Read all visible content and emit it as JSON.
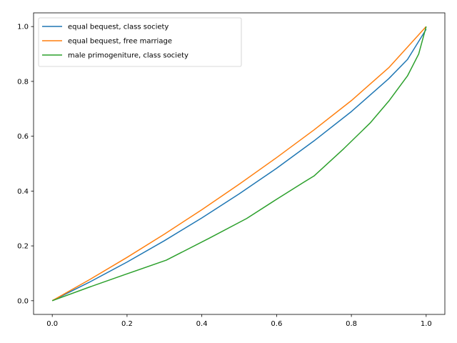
{
  "chart_data": {
    "type": "line",
    "title": "",
    "xlabel": "",
    "ylabel": "",
    "xlim": [
      -0.05,
      1.05
    ],
    "ylim": [
      -0.05,
      1.05
    ],
    "xticks": [
      "0.0",
      "0.2",
      "0.4",
      "0.6",
      "0.8",
      "1.0"
    ],
    "yticks": [
      "0.0",
      "0.2",
      "0.4",
      "0.6",
      "0.8",
      "1.0"
    ],
    "grid": false,
    "legend_position": "top-left",
    "series": [
      {
        "name": "equal bequest, class society",
        "color": "#1f77b4",
        "x": [
          0.0,
          0.1,
          0.2,
          0.3,
          0.4,
          0.5,
          0.6,
          0.7,
          0.8,
          0.9,
          0.95,
          1.0
        ],
        "y": [
          0.0,
          0.068,
          0.141,
          0.219,
          0.302,
          0.39,
          0.483,
          0.583,
          0.69,
          0.81,
          0.88,
          0.99
        ]
      },
      {
        "name": "equal bequest, free marriage",
        "color": "#ff7f0e",
        "x": [
          0.0,
          0.1,
          0.2,
          0.3,
          0.4,
          0.5,
          0.6,
          0.7,
          0.8,
          0.9,
          1.0
        ],
        "y": [
          0.0,
          0.077,
          0.158,
          0.243,
          0.332,
          0.425,
          0.522,
          0.623,
          0.73,
          0.85,
          1.0
        ]
      },
      {
        "name": "male primogeniture, class society",
        "color": "#2ca02c",
        "x": [
          0.0,
          0.1,
          0.2,
          0.305,
          0.42,
          0.52,
          0.6,
          0.67,
          0.7,
          0.78,
          0.85,
          0.9,
          0.95,
          0.98,
          1.0
        ],
        "y": [
          0.0,
          0.05,
          0.098,
          0.148,
          0.228,
          0.3,
          0.37,
          0.43,
          0.455,
          0.555,
          0.648,
          0.728,
          0.82,
          0.9,
          1.0
        ]
      }
    ]
  }
}
